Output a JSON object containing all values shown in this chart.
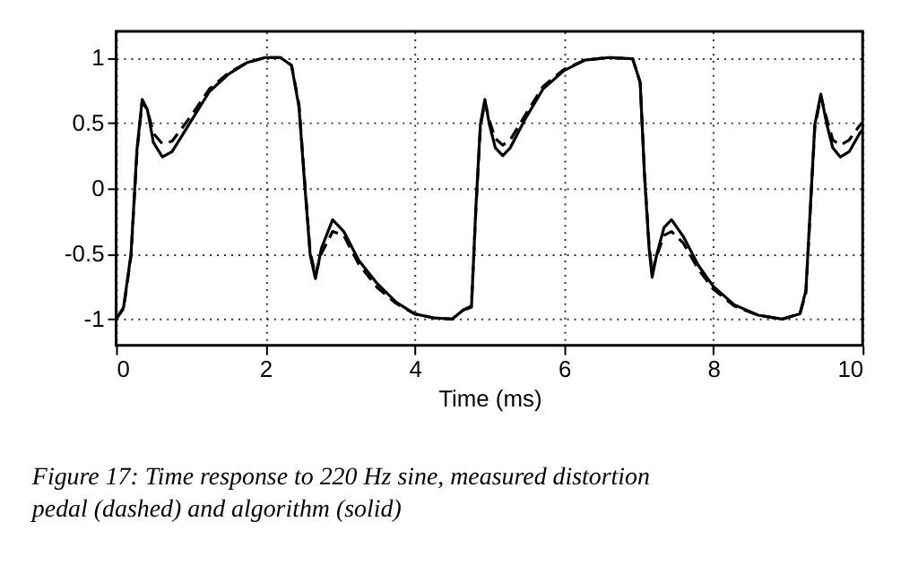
{
  "chart_data": {
    "type": "line",
    "xlabel": "Time (ms)",
    "xlim": [
      0,
      10
    ],
    "ylim": [
      -1.2,
      1.2
    ],
    "xticks": [
      0,
      2,
      4,
      6,
      8,
      10
    ],
    "yticks": [
      -1,
      -0.5,
      0,
      0.5,
      1
    ],
    "grid": true,
    "marker": "none",
    "annotations": [
      "Figure 17: Time response to 220 Hz sine, measured distortion pedal (dashed) and algorithm (solid)"
    ],
    "series": [
      {
        "color": "#000000",
        "line_style": "dashed",
        "x": [
          0,
          0.1,
          0.2,
          0.28,
          0.35,
          0.42,
          0.5,
          0.62,
          0.75,
          1.0,
          1.25,
          1.5,
          1.75,
          2.0,
          2.2,
          2.35,
          2.45,
          2.52,
          2.6,
          2.67,
          2.75,
          2.9,
          3.05,
          3.25,
          3.5,
          3.75,
          4.0,
          4.25,
          4.5,
          4.65,
          4.76,
          4.82,
          4.88,
          4.94,
          5.0,
          5.08,
          5.18,
          5.28,
          5.48,
          5.72,
          6.0,
          6.28,
          6.6,
          6.92,
          7.02,
          7.08,
          7.14,
          7.18,
          7.24,
          7.34,
          7.44,
          7.6,
          7.8,
          8.0,
          8.28,
          8.6,
          8.92,
          9.16,
          9.24,
          9.3,
          9.36,
          9.44,
          9.52,
          9.6,
          9.7,
          9.82,
          9.96,
          10
        ],
        "values": [
          -1.0,
          -0.92,
          -0.52,
          0.28,
          0.66,
          0.6,
          0.42,
          0.34,
          0.36,
          0.55,
          0.76,
          0.88,
          0.96,
          1.0,
          1.0,
          0.94,
          0.64,
          0.1,
          -0.49,
          -0.66,
          -0.5,
          -0.33,
          -0.36,
          -0.58,
          -0.76,
          -0.88,
          -0.96,
          -0.99,
          -1.0,
          -0.93,
          -0.9,
          -0.16,
          0.47,
          0.66,
          0.52,
          0.38,
          0.33,
          0.37,
          0.56,
          0.78,
          0.91,
          0.98,
          1.0,
          0.99,
          0.81,
          0.1,
          -0.44,
          -0.64,
          -0.52,
          -0.36,
          -0.33,
          -0.42,
          -0.62,
          -0.77,
          -0.9,
          -0.97,
          -1.0,
          -0.96,
          -0.8,
          -0.16,
          0.47,
          0.7,
          0.53,
          0.37,
          0.33,
          0.37,
          0.48,
          0.5
        ]
      },
      {
        "color": "#000000",
        "line_style": "solid",
        "x": [
          0,
          0.1,
          0.2,
          0.28,
          0.35,
          0.42,
          0.5,
          0.62,
          0.75,
          1.0,
          1.25,
          1.5,
          1.75,
          2.0,
          2.2,
          2.35,
          2.45,
          2.52,
          2.6,
          2.67,
          2.75,
          2.9,
          3.05,
          3.25,
          3.5,
          3.75,
          4.0,
          4.25,
          4.5,
          4.65,
          4.76,
          4.82,
          4.88,
          4.94,
          5.0,
          5.08,
          5.18,
          5.28,
          5.48,
          5.72,
          6.0,
          6.28,
          6.6,
          6.92,
          7.02,
          7.08,
          7.14,
          7.18,
          7.24,
          7.34,
          7.44,
          7.6,
          7.8,
          8.0,
          8.28,
          8.6,
          8.92,
          9.16,
          9.24,
          9.3,
          9.36,
          9.44,
          9.52,
          9.6,
          9.7,
          9.82,
          9.96,
          10
        ],
        "values": [
          -1.0,
          -0.91,
          -0.5,
          0.3,
          0.68,
          0.6,
          0.35,
          0.24,
          0.28,
          0.51,
          0.74,
          0.87,
          0.96,
          1.0,
          1.0,
          0.94,
          0.62,
          0.08,
          -0.51,
          -0.69,
          -0.46,
          -0.24,
          -0.33,
          -0.55,
          -0.73,
          -0.87,
          -0.96,
          -0.99,
          -1.0,
          -0.93,
          -0.91,
          -0.14,
          0.49,
          0.68,
          0.49,
          0.31,
          0.25,
          0.31,
          0.53,
          0.76,
          0.9,
          0.98,
          1.0,
          0.99,
          0.81,
          0.08,
          -0.46,
          -0.68,
          -0.51,
          -0.3,
          -0.24,
          -0.37,
          -0.59,
          -0.75,
          -0.89,
          -0.97,
          -1.0,
          -0.96,
          -0.78,
          -0.14,
          0.49,
          0.72,
          0.49,
          0.31,
          0.24,
          0.28,
          0.42,
          0.45
        ]
      }
    ]
  }
}
